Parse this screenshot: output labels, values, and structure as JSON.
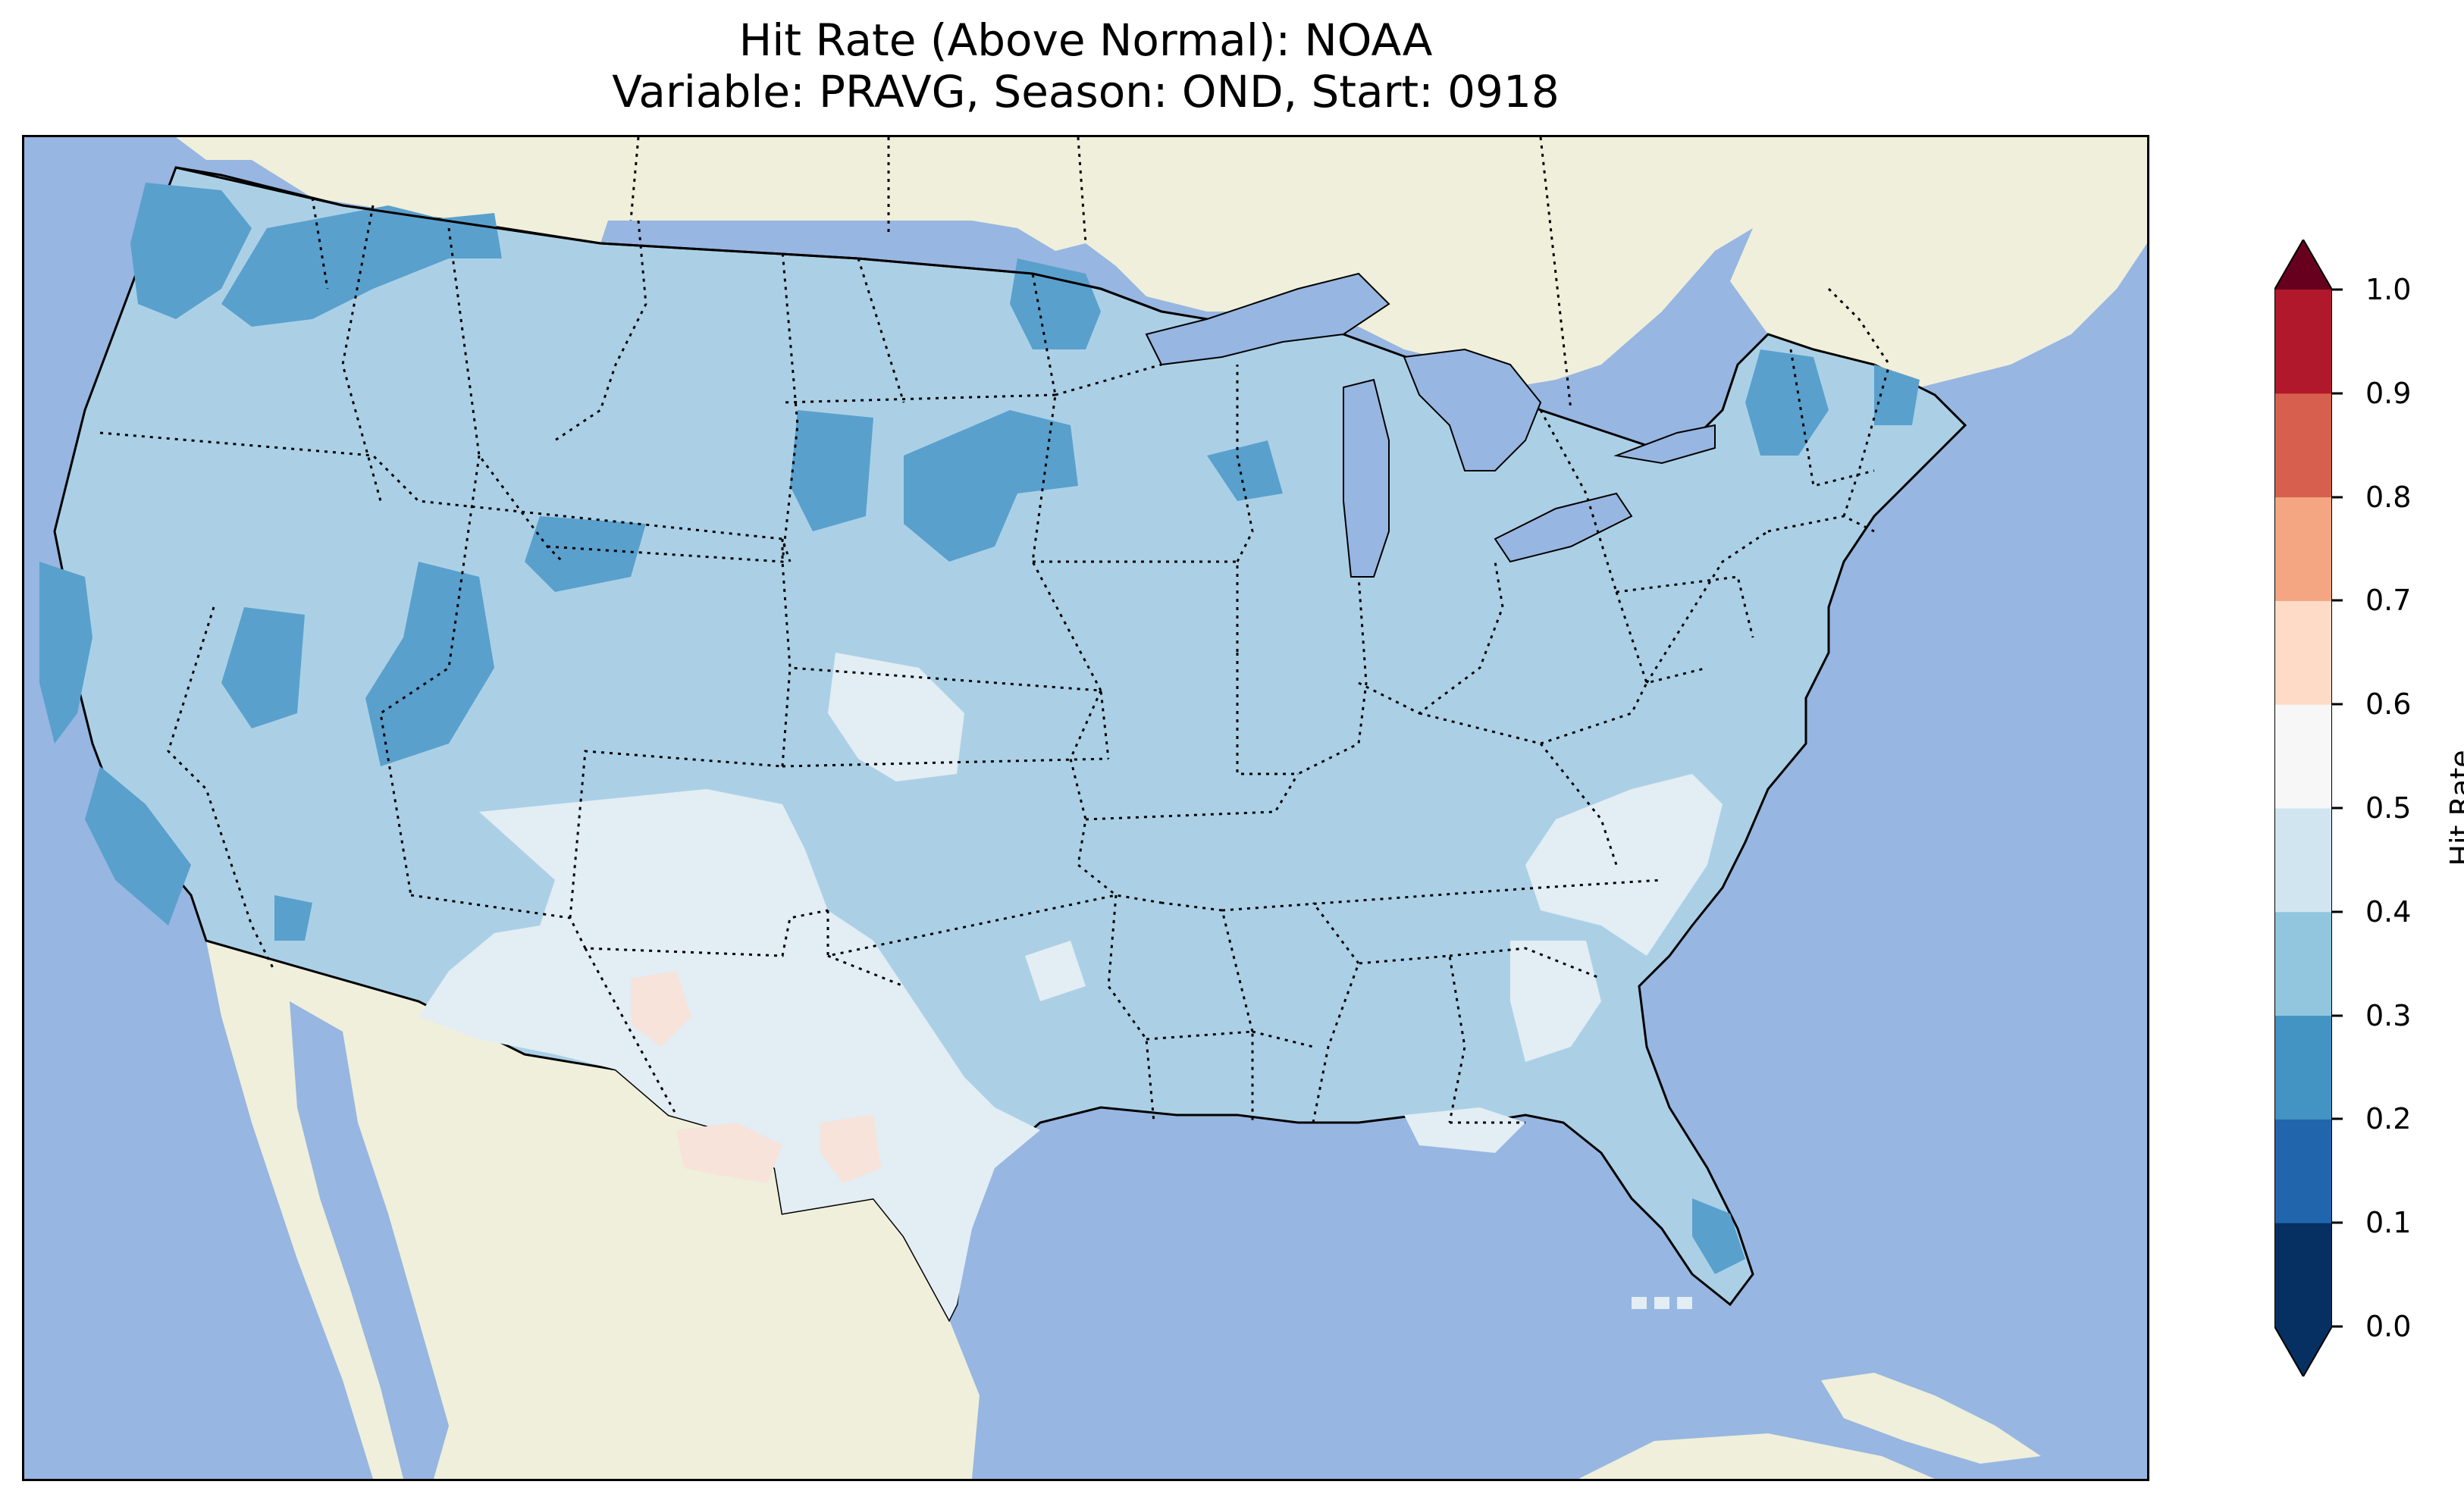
{
  "title_line1": "Hit Rate (Above Normal): NOAA",
  "title_line2": "Variable: PRAVG, Season: OND, Start: 0918",
  "colorbar": {
    "label": "Hit Rate",
    "ticks": [
      "0.0",
      "0.1",
      "0.2",
      "0.3",
      "0.4",
      "0.5",
      "0.6",
      "0.7",
      "0.8",
      "0.9",
      "1.0"
    ],
    "colors": [
      "#053061",
      "#2166ac",
      "#4393c3",
      "#92c5de",
      "#d1e5f0",
      "#f7f7f7",
      "#fddbc7",
      "#f4a582",
      "#d6604d",
      "#b2182b",
      "#67001f"
    ],
    "extend": "both"
  },
  "map": {
    "ocean_color": "#97b6e1",
    "land_color": "#efefdb",
    "dominant_value_color": "#abd0e6",
    "low_value_color": "#5aa0cd",
    "high_value_color": "#e2edf4",
    "warm_value_color": "#f7e3da",
    "features": [
      "coastlines",
      "state-borders",
      "country-borders",
      "great-lakes"
    ]
  }
}
